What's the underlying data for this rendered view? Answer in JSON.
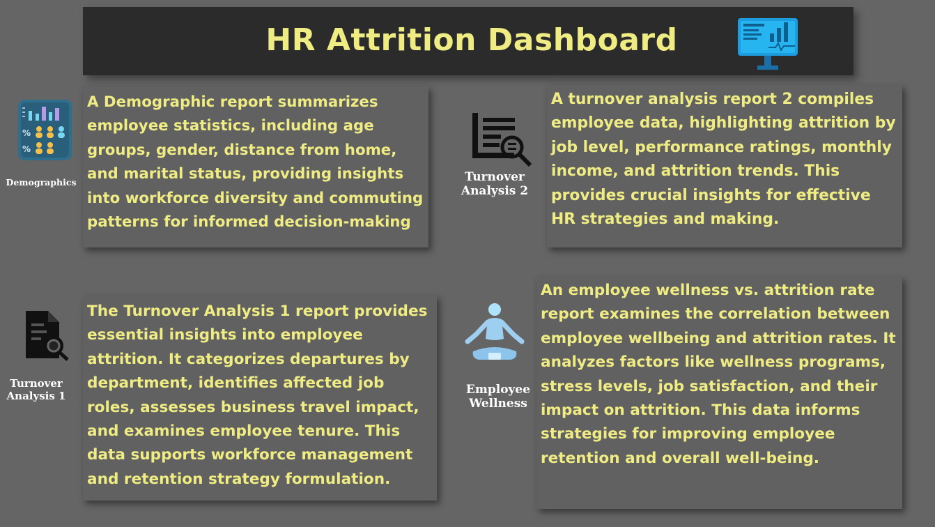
{
  "header": {
    "title": "HR Attrition Dashboard",
    "icon": "monitor-dashboard-icon"
  },
  "sections": {
    "demographics": {
      "label": "Demographics",
      "icon": "demographics-chart-icon",
      "text": "A Demographic report summarizes employee statistics, including age groups, gender, distance from home, and marital status, providing insights into workforce diversity and commuting patterns for informed decision-making"
    },
    "turnover_2": {
      "label": "Turnover Analysis 2",
      "icon": "report-magnifier-icon",
      "text": "A turnover analysis report 2 compiles employee data, highlighting attrition by job level, performance ratings, monthly income, and attrition trends. This provides crucial insights for effective HR strategies and making."
    },
    "turnover_1": {
      "label": "Turnover Analysis 1",
      "icon": "document-search-icon",
      "text": "The Turnover Analysis 1 report provides essential insights into employee attrition. It categorizes departures by department, identifies affected job roles, assesses business travel impact, and examines employee tenure. This data supports workforce management and retention strategy formulation."
    },
    "wellness": {
      "label": "Employee Wellness",
      "icon": "meditation-icon",
      "text": "An employee wellness vs. attrition rate report examines the correlation between employee wellbeing and attrition rates. It analyzes factors like wellness programs, stress levels, job satisfaction, and their impact on attrition. This data informs strategies for improving employee retention and overall well-being."
    }
  },
  "colors": {
    "background": "#656565",
    "header_bg": "#2b2b2b",
    "card_bg": "#616161",
    "text_accent": "#f0ec84",
    "label_text": "#ffffff"
  }
}
